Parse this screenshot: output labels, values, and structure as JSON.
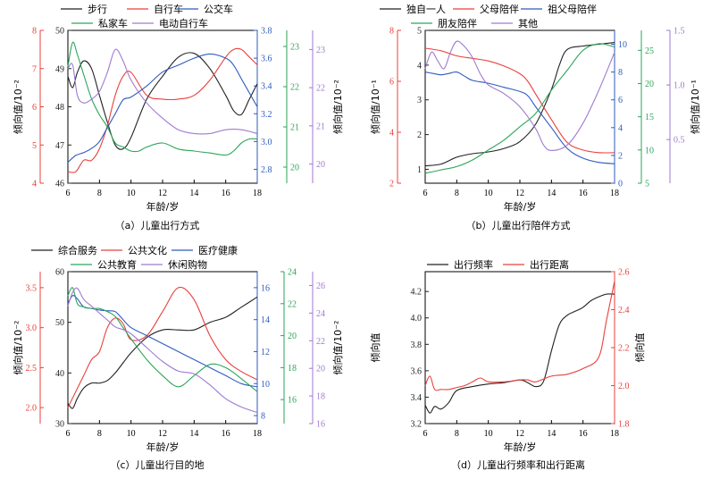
{
  "figure_colors": {
    "black": "#222222",
    "red": "#e8413c",
    "blue": "#2e5bbf",
    "green": "#2aa65a",
    "purple": "#a07ad0"
  },
  "chart_data": [
    {
      "id": "a",
      "type": "line",
      "caption": "（a）儿童出行方式",
      "xlabel": "年龄/岁",
      "xlim": [
        6,
        18
      ],
      "xticks": [
        6,
        8,
        10,
        12,
        14,
        16,
        18
      ],
      "legend_rows": [
        [
          "步行",
          "自行车",
          "公交车"
        ],
        [
          "私家车",
          "电动自行车"
        ]
      ],
      "axes": [
        {
          "side": "left",
          "offset": 0,
          "color": "black",
          "lim": [
            46,
            50
          ],
          "ticks": [
            46,
            47,
            48,
            49,
            50
          ],
          "label": "倾向值/10⁻²"
        },
        {
          "side": "left",
          "offset": 1,
          "color": "red",
          "lim": [
            4,
            8
          ],
          "ticks": [
            4,
            5,
            6,
            7,
            8
          ],
          "label": ""
        },
        {
          "side": "right",
          "offset": 0,
          "color": "blue",
          "lim": [
            2.7,
            3.8
          ],
          "ticks": [
            2.8,
            3.0,
            3.2,
            3.4,
            3.6,
            3.8
          ],
          "label": ""
        },
        {
          "side": "right",
          "offset": 1,
          "color": "green",
          "lim": [
            19.6,
            23.4
          ],
          "ticks": [
            20,
            21,
            22,
            23
          ],
          "label": ""
        },
        {
          "side": "right",
          "offset": 2,
          "color": "purple",
          "lim": [
            19.5,
            23.5
          ],
          "ticks": [
            20,
            21,
            22,
            23
          ],
          "label": "倾向值/10⁻²"
        }
      ],
      "series": [
        {
          "name": "步行",
          "color": "black",
          "axis": 0,
          "x": [
            6,
            6.3,
            6.6,
            7,
            7.5,
            8,
            8.5,
            9,
            9.5,
            10,
            11,
            12,
            13,
            14,
            15,
            16,
            16.5,
            17,
            17.5,
            18
          ],
          "y": [
            48.8,
            48.5,
            48.9,
            49.2,
            49.0,
            48.3,
            47.6,
            47.0,
            46.9,
            47.2,
            48.2,
            48.8,
            49.3,
            49.4,
            49.0,
            48.3,
            47.9,
            47.8,
            48.2,
            48.6
          ]
        },
        {
          "name": "自行车",
          "color": "red",
          "axis": 1,
          "x": [
            6,
            6.5,
            7,
            7.5,
            8,
            8.5,
            9,
            9.5,
            10,
            11,
            12,
            13,
            14,
            15,
            16,
            16.5,
            17,
            17.5,
            18
          ],
          "y": [
            4.3,
            4.3,
            4.6,
            4.6,
            4.9,
            5.5,
            6.3,
            6.8,
            6.9,
            6.3,
            6.2,
            6.2,
            6.3,
            6.7,
            7.3,
            7.5,
            7.5,
            7.3,
            7.1
          ]
        },
        {
          "name": "公交车",
          "color": "blue",
          "axis": 2,
          "x": [
            6,
            6.5,
            7,
            7.5,
            8,
            8.5,
            9,
            9.5,
            10,
            11,
            12,
            13,
            14,
            15,
            16,
            16.5,
            17,
            17.5,
            18
          ],
          "y": [
            2.85,
            2.9,
            2.92,
            2.95,
            3.0,
            3.1,
            3.2,
            3.3,
            3.32,
            3.4,
            3.5,
            3.55,
            3.6,
            3.63,
            3.6,
            3.55,
            3.45,
            3.35,
            3.25
          ]
        },
        {
          "name": "私家车",
          "color": "green",
          "axis": 3,
          "x": [
            6,
            6.3,
            6.6,
            7,
            7.5,
            8,
            8.5,
            9,
            9.5,
            10,
            10.5,
            11,
            12,
            13,
            14,
            15,
            16,
            16.5,
            17,
            17.5,
            18
          ],
          "y": [
            22.5,
            23.1,
            22.8,
            22.3,
            21.7,
            21.3,
            21.0,
            20.6,
            20.5,
            20.4,
            20.4,
            20.5,
            20.6,
            20.45,
            20.4,
            20.35,
            20.3,
            20.4,
            20.6,
            20.7,
            20.7
          ]
        },
        {
          "name": "电动自行车",
          "color": "purple",
          "axis": 4,
          "x": [
            6,
            6.3,
            6.6,
            7,
            7.5,
            8,
            8.5,
            9,
            9.5,
            10,
            11,
            12,
            13,
            14,
            15,
            16,
            17,
            18
          ],
          "y": [
            22.5,
            22.6,
            21.8,
            21.6,
            21.7,
            21.9,
            22.4,
            23.0,
            22.7,
            22.2,
            21.6,
            21.2,
            20.9,
            20.8,
            20.8,
            20.9,
            20.9,
            20.8
          ]
        }
      ]
    },
    {
      "id": "b",
      "type": "line",
      "caption": "（b）儿童出行陪伴方式",
      "xlabel": "年龄/岁",
      "xlim": [
        6,
        18
      ],
      "xticks": [
        6,
        8,
        10,
        12,
        14,
        16,
        18
      ],
      "legend_rows": [
        [
          "独自一人",
          "父母陪伴",
          "祖父母陪伴"
        ],
        [
          "朋友陪伴",
          "其他"
        ]
      ],
      "axes": [
        {
          "side": "left",
          "offset": 0,
          "color": "black",
          "lim": [
            0.6,
            5
          ],
          "ticks": [
            1,
            2,
            3,
            4,
            5
          ],
          "label": "倾向值/10⁻¹"
        },
        {
          "side": "left",
          "offset": 1,
          "color": "red",
          "lim": [
            2,
            8
          ],
          "ticks": [
            2,
            4,
            6,
            8
          ],
          "label": ""
        },
        {
          "side": "right",
          "offset": 0,
          "color": "blue",
          "lim": [
            0,
            11
          ],
          "ticks": [
            0,
            2,
            4,
            6,
            8,
            10
          ],
          "label": ""
        },
        {
          "side": "right",
          "offset": 1,
          "color": "green",
          "lim": [
            5,
            28
          ],
          "ticks": [
            5,
            10,
            15,
            20,
            25
          ],
          "label": ""
        },
        {
          "side": "right",
          "offset": 2,
          "color": "purple",
          "lim": [
            0.1,
            1.5
          ],
          "ticks": [
            0.5,
            1.0,
            1.5
          ],
          "label": "倾向值/10⁻¹"
        }
      ],
      "series": [
        {
          "name": "独自一人",
          "color": "black",
          "axis": 0,
          "x": [
            6,
            7,
            8,
            9,
            10,
            11,
            12,
            13,
            14,
            14.5,
            15,
            16,
            17,
            18
          ],
          "y": [
            1.1,
            1.15,
            1.35,
            1.45,
            1.5,
            1.6,
            1.8,
            2.3,
            3.3,
            4.0,
            4.45,
            4.55,
            4.6,
            4.65
          ]
        },
        {
          "name": "父母陪伴",
          "color": "red",
          "axis": 1,
          "x": [
            6,
            7,
            8,
            9,
            10,
            11,
            12,
            12.5,
            13,
            14,
            15,
            16,
            17,
            18
          ],
          "y": [
            7.3,
            7.2,
            7.0,
            6.9,
            6.8,
            6.6,
            6.3,
            6.0,
            5.5,
            4.5,
            3.6,
            3.3,
            3.2,
            3.2
          ]
        },
        {
          "name": "祖父母陪伴",
          "color": "blue",
          "axis": 2,
          "x": [
            6,
            6.5,
            7,
            7.5,
            8,
            8.5,
            9,
            10,
            11,
            12,
            12.5,
            13,
            14,
            15,
            16,
            17,
            18
          ],
          "y": [
            8.0,
            7.9,
            7.8,
            7.9,
            8.0,
            7.7,
            7.4,
            7.2,
            6.9,
            6.6,
            6.3,
            5.5,
            4.0,
            2.5,
            1.8,
            1.5,
            1.4
          ]
        },
        {
          "name": "朋友陪伴",
          "color": "green",
          "axis": 3,
          "x": [
            6,
            7,
            8,
            9,
            10,
            11,
            12,
            13,
            14,
            15,
            16,
            17,
            18
          ],
          "y": [
            6.5,
            7.0,
            7.5,
            8.5,
            10.0,
            11.5,
            13.5,
            15.5,
            19.0,
            22.0,
            25.0,
            26.0,
            25.5
          ]
        },
        {
          "name": "其他",
          "color": "purple",
          "axis": 4,
          "x": [
            6,
            6.4,
            6.8,
            7.2,
            7.6,
            8,
            8.5,
            9,
            9.5,
            10,
            11,
            12,
            13,
            13.5,
            14,
            15,
            16,
            17,
            18
          ],
          "y": [
            1.15,
            1.3,
            1.22,
            1.15,
            1.3,
            1.4,
            1.35,
            1.25,
            1.1,
            1.0,
            0.92,
            0.8,
            0.6,
            0.45,
            0.4,
            0.45,
            0.65,
            0.95,
            1.3
          ]
        }
      ]
    },
    {
      "id": "c",
      "type": "line",
      "caption": "（c）儿童出行目的地",
      "xlabel": "年龄/岁",
      "xlim": [
        6,
        18
      ],
      "xticks": [
        6,
        8,
        10,
        12,
        14,
        16,
        18
      ],
      "legend_rows": [
        [
          "综合服务",
          "公共文化",
          "医疗健康"
        ],
        [
          "公共教育",
          "休闲购物"
        ]
      ],
      "axes": [
        {
          "side": "left",
          "offset": 0,
          "color": "black",
          "lim": [
            30,
            60
          ],
          "ticks": [
            30,
            40,
            50,
            60
          ],
          "label": "倾向值/10⁻²"
        },
        {
          "side": "left",
          "offset": 1,
          "color": "red",
          "lim": [
            1.8,
            3.7
          ],
          "ticks": [
            2.0,
            2.5,
            3.0,
            3.5
          ],
          "label": ""
        },
        {
          "side": "right",
          "offset": 0,
          "color": "blue",
          "lim": [
            7.5,
            17
          ],
          "ticks": [
            8,
            10,
            12,
            14,
            16
          ],
          "label": ""
        },
        {
          "side": "right",
          "offset": 1,
          "color": "green",
          "lim": [
            14.5,
            24
          ],
          "ticks": [
            16,
            18,
            20,
            22,
            24
          ],
          "label": ""
        },
        {
          "side": "right",
          "offset": 2,
          "color": "purple",
          "lim": [
            16,
            27
          ],
          "ticks": [
            16,
            18,
            20,
            22,
            24,
            26
          ],
          "label": "倾向值/10⁻²"
        }
      ],
      "series": [
        {
          "name": "综合服务",
          "color": "black",
          "axis": 0,
          "x": [
            6,
            6.3,
            6.6,
            7,
            7.5,
            8,
            8.5,
            9,
            9.5,
            10,
            11,
            12,
            13,
            14,
            15,
            16,
            17,
            18
          ],
          "y": [
            34,
            33,
            35,
            37,
            38,
            38,
            38.5,
            40,
            42,
            44,
            47,
            48.5,
            48.5,
            48.5,
            50,
            51,
            53,
            55
          ]
        },
        {
          "name": "公共文化",
          "color": "red",
          "axis": 1,
          "x": [
            6,
            6.5,
            7,
            7.5,
            8,
            8.5,
            9,
            9.5,
            10,
            11,
            12,
            13,
            14,
            15,
            16,
            17,
            18
          ],
          "y": [
            2.0,
            2.2,
            2.4,
            2.6,
            2.7,
            3.0,
            3.12,
            3.05,
            2.85,
            2.9,
            3.2,
            3.5,
            3.35,
            2.9,
            2.6,
            2.45,
            2.35
          ]
        },
        {
          "name": "医疗健康",
          "color": "blue",
          "axis": 2,
          "x": [
            6,
            6.3,
            6.6,
            7,
            7.5,
            8,
            8.5,
            9,
            9.5,
            10,
            11,
            12,
            13,
            14,
            15,
            16,
            17,
            18
          ],
          "y": [
            15.0,
            15.5,
            15.3,
            14.8,
            14.7,
            14.6,
            14.55,
            14.5,
            14.0,
            13.5,
            13.0,
            12.5,
            12.0,
            11.5,
            11.0,
            10.5,
            10.0,
            9.8
          ]
        },
        {
          "name": "公共教育",
          "color": "green",
          "axis": 3,
          "x": [
            6,
            6.3,
            6.6,
            7,
            7.5,
            8,
            8.5,
            9,
            9.5,
            10,
            11,
            12,
            13,
            14,
            15,
            16,
            17,
            18
          ],
          "y": [
            22.5,
            23.0,
            22.0,
            21.8,
            21.7,
            21.7,
            21.5,
            21.2,
            20.5,
            19.8,
            18.5,
            17.5,
            16.8,
            17.5,
            18.2,
            18.0,
            17.3,
            16.5
          ]
        },
        {
          "name": "休闲购物",
          "color": "purple",
          "axis": 4,
          "x": [
            6,
            6.3,
            6.6,
            7,
            7.5,
            8,
            8.5,
            9,
            9.5,
            10,
            11,
            12,
            13,
            14,
            15,
            16,
            17,
            18
          ],
          "y": [
            24.5,
            25.5,
            25.8,
            25.0,
            24.5,
            24.0,
            23.5,
            23.0,
            22.8,
            22.5,
            21.5,
            20.5,
            19.8,
            19.6,
            18.8,
            17.8,
            17.2,
            16.8
          ]
        }
      ]
    },
    {
      "id": "d",
      "type": "line",
      "caption": "（d）儿童出行频率和出行距离",
      "xlabel": "年龄/岁",
      "xlim": [
        6,
        18
      ],
      "xticks": [
        6,
        8,
        10,
        12,
        14,
        16,
        18
      ],
      "legend_rows": [
        [
          "出行频率",
          "出行距离"
        ]
      ],
      "axes": [
        {
          "side": "left",
          "offset": 0,
          "color": "black",
          "lim": [
            3.2,
            4.35
          ],
          "ticks": [
            3.2,
            3.4,
            3.6,
            3.8,
            4.0,
            4.2
          ],
          "label": "倾向值"
        },
        {
          "side": "right",
          "offset": 0,
          "color": "red",
          "lim": [
            1.8,
            2.6
          ],
          "ticks": [
            1.8,
            2.0,
            2.2,
            2.4,
            2.6
          ],
          "label": "倾向值"
        }
      ],
      "series": [
        {
          "name": "出行频率",
          "color": "black",
          "axis": 0,
          "x": [
            6,
            6.3,
            6.6,
            7,
            7.5,
            8,
            9,
            10,
            11,
            12,
            12.5,
            13,
            13.5,
            14,
            14.5,
            15,
            15.5,
            16,
            16.5,
            17,
            17.5,
            18
          ],
          "y": [
            3.34,
            3.28,
            3.33,
            3.31,
            3.36,
            3.45,
            3.48,
            3.5,
            3.51,
            3.53,
            3.51,
            3.48,
            3.52,
            3.75,
            3.95,
            4.02,
            4.05,
            4.08,
            4.13,
            4.16,
            4.18,
            4.18
          ]
        },
        {
          "name": "出行距离",
          "color": "red",
          "axis": 1,
          "x": [
            6,
            6.3,
            6.6,
            7,
            7.5,
            8,
            8.5,
            9,
            9.5,
            10,
            11,
            12,
            12.5,
            13,
            14,
            15,
            16,
            17,
            17.5,
            18
          ],
          "y": [
            2.0,
            2.05,
            1.98,
            1.98,
            1.98,
            1.99,
            2.0,
            2.02,
            2.04,
            2.02,
            2.02,
            2.03,
            2.03,
            2.02,
            2.05,
            2.06,
            2.09,
            2.15,
            2.35,
            2.55
          ]
        }
      ]
    }
  ]
}
